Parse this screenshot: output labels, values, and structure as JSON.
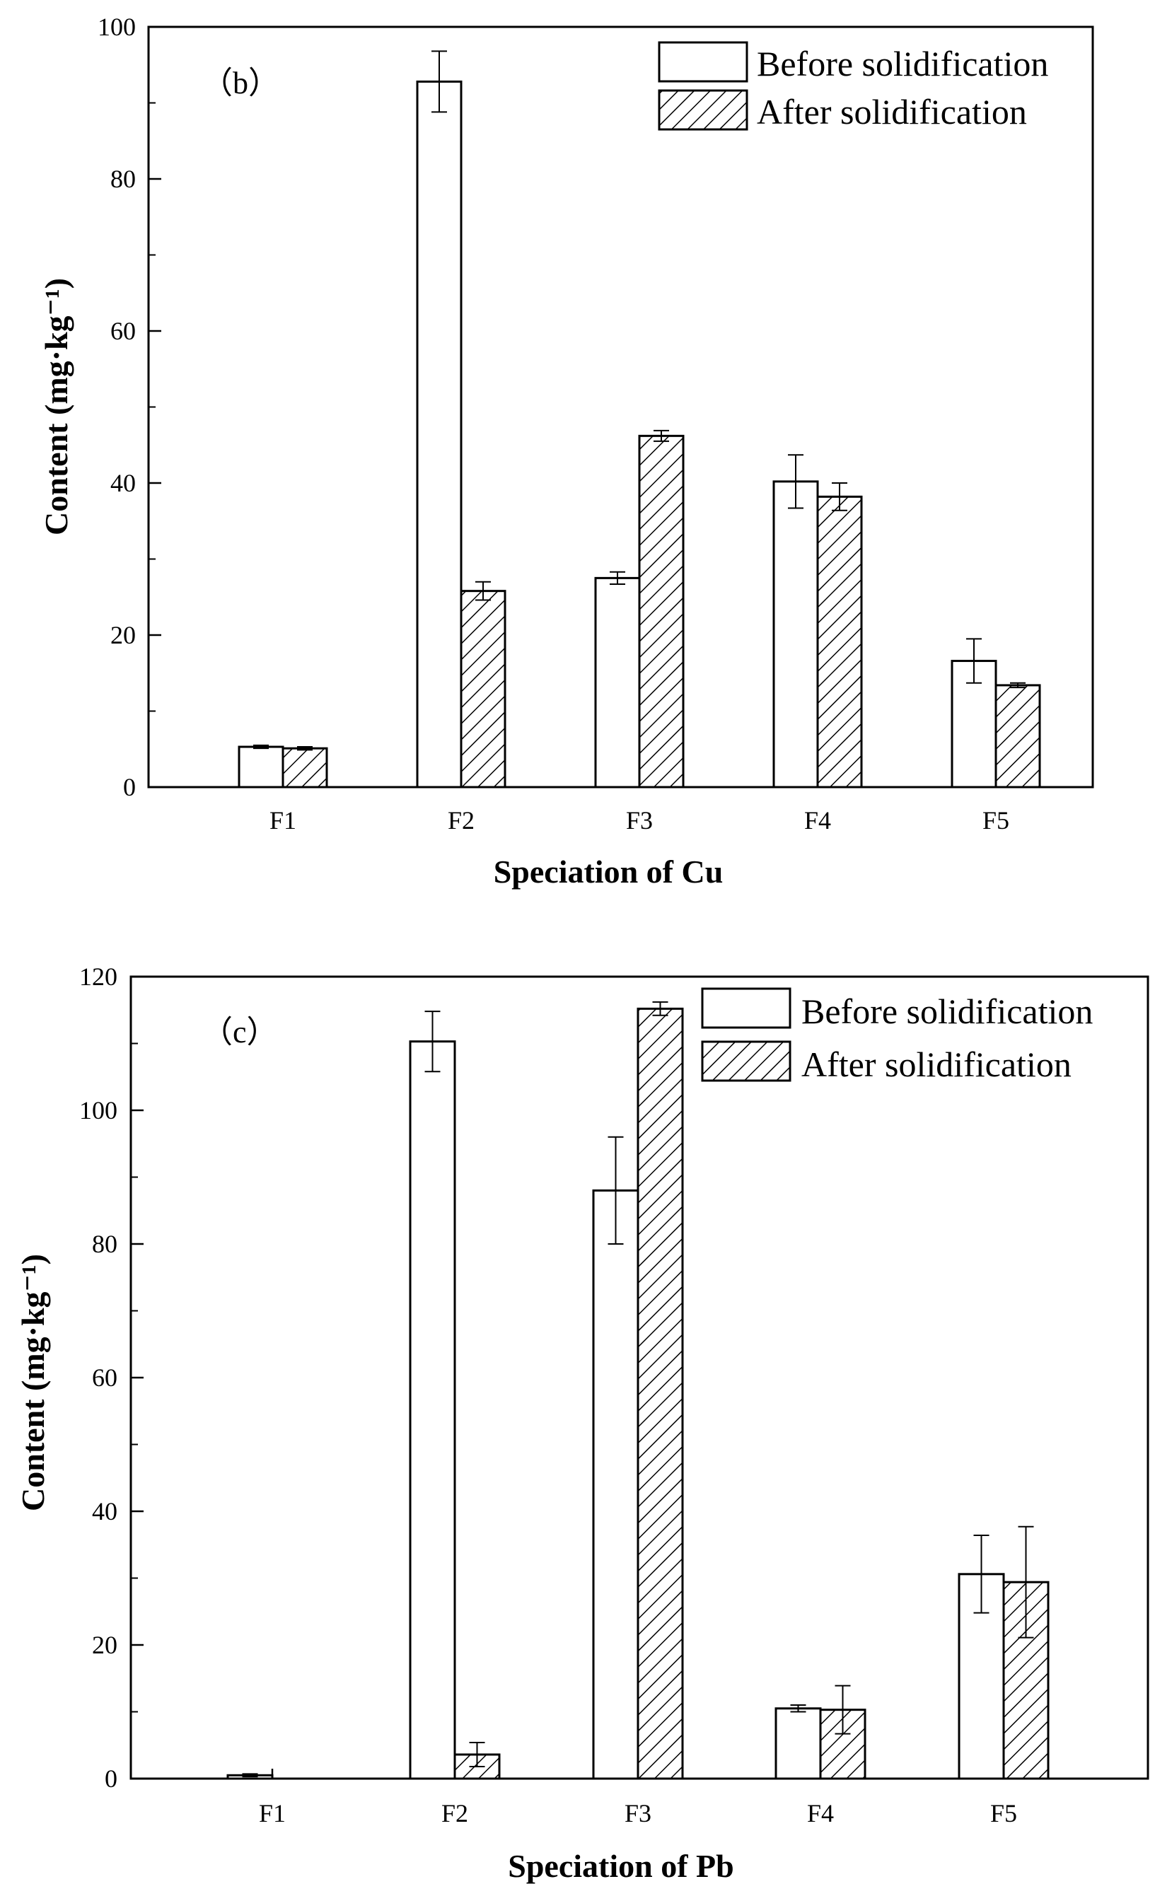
{
  "chart_data": [
    {
      "type": "bar",
      "panel_label": "（b）",
      "categories": [
        "F1",
        "F2",
        "F3",
        "F4",
        "F5"
      ],
      "series": [
        {
          "name": "Before solidification",
          "pattern": "none",
          "values": [
            5.3,
            92.8,
            27.5,
            40.2,
            16.6
          ],
          "errors": [
            0.2,
            4.0,
            0.8,
            3.5,
            2.9
          ]
        },
        {
          "name": "After solidification",
          "pattern": "hatch",
          "values": [
            5.1,
            25.8,
            46.2,
            38.2,
            13.4
          ],
          "errors": [
            0.2,
            1.2,
            0.7,
            1.8,
            0.3
          ]
        }
      ],
      "xlabel": "Speciation of Cu",
      "ylabel": "Content (mg·kg⁻¹)",
      "ylim": [
        0,
        100
      ],
      "yticks": [
        0,
        20,
        40,
        60,
        80,
        100
      ],
      "legend_position": "top-right"
    },
    {
      "type": "bar",
      "panel_label": "（c）",
      "categories": [
        "F1",
        "F2",
        "F3",
        "F4",
        "F5"
      ],
      "series": [
        {
          "name": "Before solidification",
          "pattern": "none",
          "values": [
            0.5,
            110.3,
            88.0,
            10.5,
            30.6
          ],
          "errors": [
            0.2,
            4.5,
            8.0,
            0.5,
            5.8
          ]
        },
        {
          "name": "After solidification",
          "pattern": "hatch",
          "values": [
            0,
            3.6,
            115.2,
            10.3,
            29.4
          ],
          "errors": [
            0,
            1.8,
            1.0,
            3.6,
            8.3
          ]
        }
      ],
      "xlabel": "Speciation of Pb",
      "ylabel": "Content (mg·kg⁻¹)",
      "ylim": [
        0,
        120
      ],
      "yticks": [
        0,
        20,
        40,
        60,
        80,
        100,
        120
      ],
      "legend_position": "top-right"
    }
  ]
}
